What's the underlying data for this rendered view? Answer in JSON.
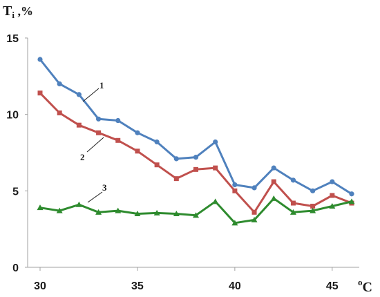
{
  "chart_data": {
    "type": "line",
    "ylabel": "T",
    "ylabel_sub": "i",
    "ylabel_suffix": " ,%",
    "xlabel_degree": "o",
    "xlabel_unit": "C",
    "xlim": [
      30,
      46
    ],
    "ylim": [
      0,
      15
    ],
    "x_ticks": [
      "30",
      "35",
      "40",
      "45"
    ],
    "y_ticks": [
      "0",
      "5",
      "10",
      "15"
    ],
    "grid": false,
    "x": [
      30,
      31,
      32,
      33,
      34,
      35,
      36,
      37,
      38,
      39,
      40,
      41,
      42,
      43,
      44,
      45,
      46
    ],
    "series": [
      {
        "name": "1",
        "color": "#4F81BD",
        "marker": "circle",
        "values": [
          13.6,
          12.0,
          11.3,
          9.7,
          9.6,
          8.8,
          8.2,
          7.1,
          7.2,
          8.2,
          5.4,
          5.2,
          6.5,
          5.7,
          5.0,
          5.6,
          4.8
        ]
      },
      {
        "name": "2",
        "color": "#C0504D",
        "marker": "square",
        "values": [
          11.4,
          10.1,
          9.3,
          8.8,
          8.3,
          7.6,
          6.7,
          5.8,
          6.4,
          6.5,
          5.0,
          3.6,
          5.6,
          4.2,
          4.0,
          4.7,
          4.2
        ]
      },
      {
        "name": "3",
        "color": "#2E8B2E",
        "marker": "triangle",
        "values": [
          3.9,
          3.7,
          4.1,
          3.6,
          3.7,
          3.5,
          3.55,
          3.5,
          3.4,
          4.3,
          2.9,
          3.1,
          4.5,
          3.6,
          3.7,
          4.0,
          4.3
        ]
      }
    ]
  }
}
